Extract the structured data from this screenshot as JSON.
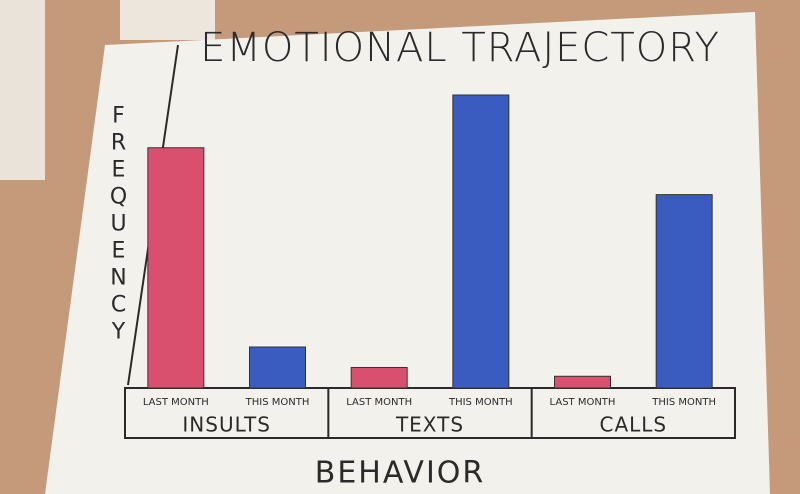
{
  "chart_data": {
    "type": "bar",
    "title": "EMOTIONAL TRAJECTORY",
    "y_label": "FREQUENCY",
    "x_label": "BEHAVIOR",
    "categories": [
      "INSULTS",
      "TEXTS",
      "CALLS"
    ],
    "series": [
      {
        "name": "LAST MONTH",
        "color": "#d9506f",
        "values": [
          82,
          7,
          4
        ]
      },
      {
        "name": "THIS MONTH",
        "color": "#3a5cc0",
        "values": [
          14,
          100,
          66
        ]
      }
    ],
    "ylim": [
      0,
      100
    ]
  }
}
